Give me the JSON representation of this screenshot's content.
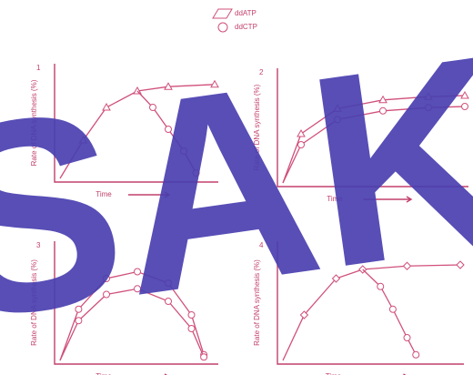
{
  "legend": [
    {
      "symbol": "triangle",
      "label": "ddATP"
    },
    {
      "symbol": "circle",
      "label": "ddCTP"
    }
  ],
  "panels": [
    {
      "number": "1",
      "ylabel": "Rate of DNA synthesis (%)",
      "xlabel": "Time"
    },
    {
      "number": "2",
      "ylabel": "Rate of DNA synthesis (%)",
      "xlabel": "Time"
    },
    {
      "number": "3",
      "ylabel": "Rate of DNA synthesis (%)",
      "xlabel": "Time"
    },
    {
      "number": "4",
      "ylabel": "Rate of DNA synthesis (%)",
      "xlabel": "Time"
    }
  ],
  "watermark": "SAK"
}
